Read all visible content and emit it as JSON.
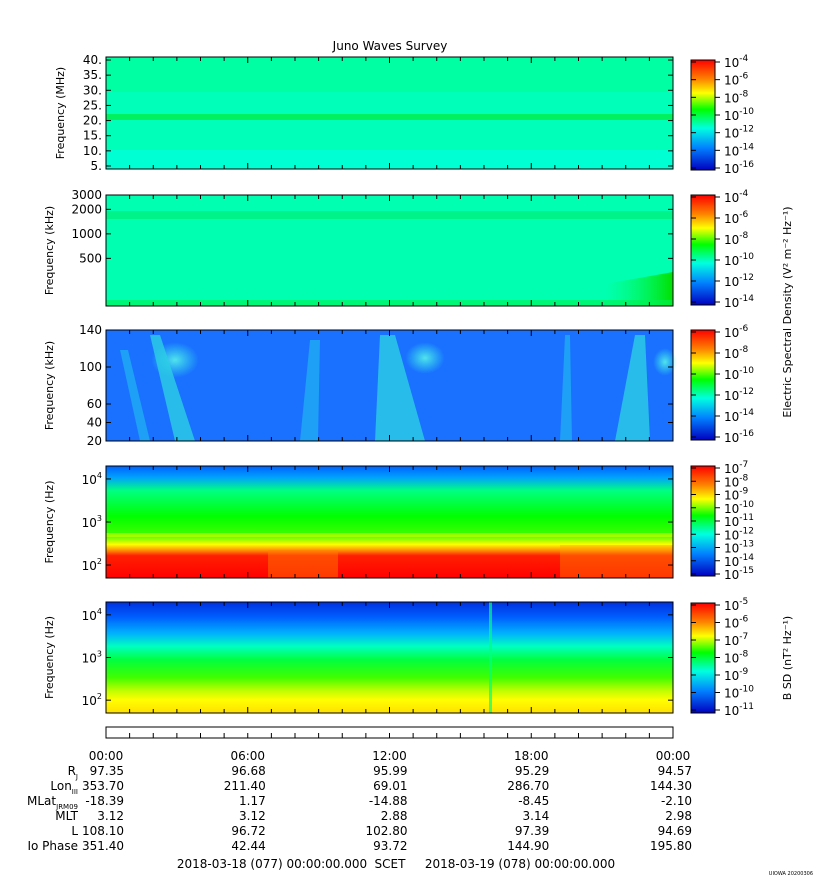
{
  "chart_data": {
    "type": "heatmap",
    "title": "Juno Waves Survey",
    "panels": [
      {
        "id": "hfr-high",
        "ylabel": "Frequency (MHz)",
        "scale": "linear",
        "ylim": [
          4,
          41
        ],
        "yticks": [
          {
            "v": 5,
            "label": "5."
          },
          {
            "v": 10,
            "label": "10."
          },
          {
            "v": 15,
            "label": "15."
          },
          {
            "v": 20,
            "label": "20."
          },
          {
            "v": 25,
            "label": "25."
          },
          {
            "v": 30,
            "label": "30."
          },
          {
            "v": 35,
            "label": "35."
          },
          {
            "v": 40,
            "label": "40."
          }
        ],
        "colorbar": {
          "exponents": [
            "-4",
            "-6",
            "-8",
            "-10",
            "-12",
            "-14",
            "-16"
          ]
        },
        "features": [
          "uniform background near 1e-12 to 1e-13",
          "bright band near 21 MHz"
        ]
      },
      {
        "id": "hfr-low",
        "ylabel": "Frequency (kHz)",
        "scale": "log",
        "ylim": [
          130,
          3000
        ],
        "yticks": [
          {
            "v": 500,
            "label": "500"
          },
          {
            "v": 1000,
            "label": "1000"
          },
          {
            "v": 2000,
            "label": "2000"
          },
          {
            "v": 3000,
            "label": "3000"
          }
        ],
        "colorbar": {
          "exponents": [
            "-4",
            "-6",
            "-8",
            "-10",
            "-12",
            "-14"
          ]
        },
        "features": [
          "band near 1700 kHz",
          "enhanced emission at low frequencies after ~16:00"
        ]
      },
      {
        "id": "lfr-high",
        "ylabel": "Frequency (kHz)",
        "scale": "linear",
        "ylim": [
          20,
          140
        ],
        "yticks": [
          {
            "v": 20,
            "label": "20"
          },
          {
            "v": 40,
            "label": "40"
          },
          {
            "v": 60,
            "label": "60"
          },
          {
            "v": 100,
            "label": "100"
          },
          {
            "v": 140,
            "label": "140"
          }
        ],
        "colorbar": {
          "exponents": [
            "-6",
            "-8",
            "-10",
            "-12",
            "-14",
            "-16"
          ]
        },
        "features": [
          "quasi-periodic emission bursts around 02:00, 11:00 and 21:00"
        ]
      },
      {
        "id": "lfr-low",
        "ylabel": "Frequency (Hz)",
        "scale": "log",
        "ylim": [
          50,
          20000
        ],
        "yticks": [
          {
            "v": 100,
            "exp": "2"
          },
          {
            "v": 1000,
            "exp": "3"
          },
          {
            "v": 10000,
            "exp": "4"
          }
        ],
        "colorbar": {
          "exponents": [
            "-7",
            "-8",
            "-9",
            "-10",
            "-11",
            "-12",
            "-13",
            "-14",
            "-15"
          ]
        },
        "features": [
          "intense emission below ~300 Hz across the interval"
        ]
      },
      {
        "id": "magnetic",
        "ylabel": "Frequency (Hz)",
        "scale": "log",
        "ylim": [
          50,
          20000
        ],
        "yticks": [
          {
            "v": 100,
            "exp": "2"
          },
          {
            "v": 1000,
            "exp": "3"
          },
          {
            "v": 10000,
            "exp": "4"
          }
        ],
        "colorbar": {
          "exponents": [
            "-5",
            "-6",
            "-7",
            "-8",
            "-9",
            "-10",
            "-11"
          ]
        },
        "features": [
          "magnetic noise decreasing with frequency"
        ]
      }
    ],
    "electric_colorbar_label": "Electric Spectral Density (V² m⁻² Hz⁻¹)",
    "magnetic_colorbar_label": "B SD (nT² Hz⁻¹)",
    "xticks": [
      "00:00",
      "06:00",
      "12:00",
      "18:00",
      "00:00"
    ],
    "ephemeris": [
      {
        "label": "R",
        "sub": "J",
        "values": [
          "97.35",
          "96.68",
          "95.99",
          "95.29",
          "94.57"
        ]
      },
      {
        "label": "Lon",
        "sub": "III",
        "values": [
          "353.70",
          "211.40",
          "69.01",
          "286.70",
          "144.30"
        ]
      },
      {
        "label": "MLat",
        "sub": "JRM09",
        "values": [
          "-18.39",
          "1.17",
          "-14.88",
          "-8.45",
          "-2.10"
        ]
      },
      {
        "label": "MLT",
        "sub": "",
        "values": [
          "3.12",
          "3.12",
          "2.88",
          "3.14",
          "2.98"
        ]
      },
      {
        "label": "L",
        "sub": "",
        "values": [
          "108.10",
          "96.72",
          "102.80",
          "97.39",
          "94.69"
        ]
      },
      {
        "label": "Io Phase",
        "sub": "",
        "values": [
          "351.40",
          "42.44",
          "93.72",
          "144.90",
          "195.80"
        ]
      }
    ],
    "time_range": {
      "start": "2018-03-18 (077) 00:00:00.000",
      "mid": "SCET",
      "end": "2018-03-19 (078) 00:00:00.000"
    },
    "footer_tag": "UIOWA 20200306"
  }
}
